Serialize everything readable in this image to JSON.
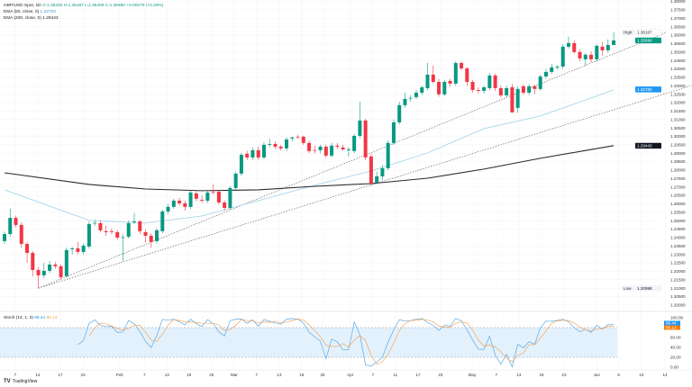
{
  "legend": {
    "symbol": "GBP/USD Spot, 1D",
    "ohlc": "O:1.35420 H:1.36167 L:1.35408 C:1.35690 +0.00270 (+0.20%)",
    "ema50_label": "EMA (50, close, 0)",
    "ema50_value": "1.32783",
    "ema200_label": "EMA (200, close, 0)",
    "ema200_value": "1.29443"
  },
  "stoch_legend": {
    "label": "Stoch (14, 1, 3)",
    "k_value": "88.44",
    "d_value": "85.13"
  },
  "branding": {
    "logo_text": "TradingView"
  },
  "colors": {
    "up": "#089981",
    "down": "#f23645",
    "ema50": "#a9d6ea",
    "ema200": "#2a2a2a",
    "stoch_k": "#5aaae6",
    "stoch_d": "#f5a55a",
    "stoch_band": "#e3f1fc",
    "close_badge": "#089981",
    "ema50_badge": "#2196f3",
    "ema200_badge": "#131722"
  },
  "chart_data": [
    {
      "type": "candlestick",
      "title": "GBP/USD Spot, 1D",
      "ylim": [
        1.195,
        1.3815
      ],
      "grid": true,
      "y_ticks": [
        "1.38000",
        "1.37500",
        "1.37000",
        "1.36500",
        "1.36000",
        "1.35500",
        "1.35000",
        "1.34500",
        "1.34000",
        "1.33500",
        "1.33000",
        "1.32500",
        "1.32000",
        "1.31500",
        "1.31000",
        "1.30500",
        "1.30000",
        "1.29500",
        "1.29000",
        "1.28500",
        "1.28000",
        "1.27500",
        "1.27000",
        "1.26500",
        "1.26000",
        "1.25500",
        "1.25000",
        "1.24500",
        "1.24000",
        "1.23500",
        "1.23000",
        "1.22500",
        "1.22000",
        "1.21500",
        "1.21000",
        "1.20500",
        "1.20000"
      ],
      "x_ticks": [
        {
          "label": "7",
          "index": 1.9
        },
        {
          "label": "13",
          "index": 5.9
        },
        {
          "label": "17",
          "index": 9.9
        },
        {
          "label": "23",
          "index": 13.9
        },
        {
          "label": "Feb",
          "index": 20.4
        },
        {
          "label": "7",
          "index": 24.8
        },
        {
          "label": "13",
          "index": 28.8
        },
        {
          "label": "19",
          "index": 32.7
        },
        {
          "label": "25",
          "index": 36.7
        },
        {
          "label": "Mar",
          "index": 40.7
        },
        {
          "label": "7",
          "index": 44.7
        },
        {
          "label": "13",
          "index": 48.7
        },
        {
          "label": "19",
          "index": 52.7
        },
        {
          "label": "25",
          "index": 56.4
        },
        {
          "label": "Apr",
          "index": 61.3
        },
        {
          "label": "7",
          "index": 65.3
        },
        {
          "label": "11",
          "index": 69.3
        },
        {
          "label": "17",
          "index": 73.3
        },
        {
          "label": "23",
          "index": 77.3
        },
        {
          "label": "May",
          "index": 82.9
        },
        {
          "label": "7",
          "index": 87.2
        },
        {
          "label": "13",
          "index": 91.2
        },
        {
          "label": "19",
          "index": 95.2
        },
        {
          "label": "23",
          "index": 99.2
        },
        {
          "label": "Jun",
          "index": 105
        },
        {
          "label": "6",
          "index": 108.9
        },
        {
          "label": "10",
          "index": 112.9
        },
        {
          "label": "14",
          "index": 117.1
        }
      ],
      "ohlc": [
        [
          1.2379,
          1.2436,
          1.2364,
          1.2421
        ],
        [
          1.2421,
          1.2571,
          1.2405,
          1.2517
        ],
        [
          1.2517,
          1.253,
          1.246,
          1.2475
        ],
        [
          1.2475,
          1.249,
          1.234,
          1.2362
        ],
        [
          1.2362,
          1.2375,
          1.225,
          1.2309
        ],
        [
          1.2309,
          1.232,
          1.217,
          1.2208
        ],
        [
          1.2208,
          1.2225,
          1.21,
          1.2176
        ],
        [
          1.2176,
          1.225,
          1.216,
          1.2203
        ],
        [
          1.2203,
          1.2262,
          1.219,
          1.224
        ],
        [
          1.224,
          1.2255,
          1.2215,
          1.223
        ],
        [
          1.223,
          1.224,
          1.215,
          1.2165
        ],
        [
          1.2171,
          1.234,
          1.216,
          1.2326
        ],
        [
          1.2331,
          1.2345,
          1.23,
          1.2336
        ],
        [
          1.2336,
          1.2375,
          1.23,
          1.2315
        ],
        [
          1.2315,
          1.2365,
          1.23,
          1.2352
        ],
        [
          1.2347,
          1.2495,
          1.2335,
          1.248
        ],
        [
          1.2485,
          1.2505,
          1.247,
          1.2487
        ],
        [
          1.2486,
          1.25,
          1.243,
          1.2443
        ],
        [
          1.2438,
          1.247,
          1.241,
          1.2432
        ],
        [
          1.2438,
          1.2455,
          1.242,
          1.2433
        ],
        [
          1.2432,
          1.2445,
          1.2385,
          1.24
        ],
        [
          1.24,
          1.242,
          1.2262,
          1.2402
        ],
        [
          1.2405,
          1.25,
          1.2395,
          1.2486
        ],
        [
          1.2491,
          1.2545,
          1.248,
          1.2496
        ],
        [
          1.2496,
          1.2505,
          1.242,
          1.2438
        ],
        [
          1.2432,
          1.245,
          1.237,
          1.2411
        ],
        [
          1.2411,
          1.2425,
          1.234,
          1.2374
        ],
        [
          1.2379,
          1.2455,
          1.2365,
          1.2443
        ],
        [
          1.2438,
          1.2565,
          1.2425,
          1.2555
        ],
        [
          1.2555,
          1.26,
          1.254,
          1.2582
        ],
        [
          1.2582,
          1.263,
          1.257,
          1.2619
        ],
        [
          1.2619,
          1.2635,
          1.259,
          1.2603
        ],
        [
          1.2603,
          1.262,
          1.256,
          1.2582
        ],
        [
          1.2582,
          1.268,
          1.257,
          1.2667
        ],
        [
          1.2662,
          1.2675,
          1.2615,
          1.263
        ],
        [
          1.2624,
          1.265,
          1.2605,
          1.2619
        ],
        [
          1.2619,
          1.268,
          1.2605,
          1.2667
        ],
        [
          1.2672,
          1.2715,
          1.2655,
          1.267
        ],
        [
          1.2672,
          1.2685,
          1.2595,
          1.2608
        ],
        [
          1.2608,
          1.262,
          1.256,
          1.2576
        ],
        [
          1.2576,
          1.2705,
          1.2565,
          1.2694
        ],
        [
          1.2694,
          1.279,
          1.268,
          1.2779
        ],
        [
          1.2779,
          1.29,
          1.2765,
          1.2891
        ],
        [
          1.2897,
          1.2915,
          1.286,
          1.2875
        ],
        [
          1.2875,
          1.2935,
          1.286,
          1.2918
        ],
        [
          1.2918,
          1.294,
          1.286,
          1.2875
        ],
        [
          1.2875,
          1.2965,
          1.2865,
          1.295
        ],
        [
          1.295,
          1.2985,
          1.2935,
          1.2955
        ],
        [
          1.2955,
          1.297,
          1.2925,
          1.2939
        ],
        [
          1.2939,
          1.295,
          1.2915,
          1.2929
        ],
        [
          1.2929,
          1.2995,
          1.2915,
          1.2982
        ],
        [
          1.2987,
          1.3,
          1.297,
          1.2993
        ],
        [
          1.2998,
          1.301,
          1.2985,
          1.2997
        ],
        [
          1.2998,
          1.3005,
          1.295,
          1.2961
        ],
        [
          1.2961,
          1.2975,
          1.29,
          1.2913
        ],
        [
          1.2918,
          1.2945,
          1.29,
          1.2916
        ],
        [
          1.2918,
          1.295,
          1.29,
          1.2939
        ],
        [
          1.2939,
          1.295,
          1.2875,
          1.2886
        ],
        [
          1.2886,
          1.296,
          1.2875,
          1.2945
        ],
        [
          1.2945,
          1.296,
          1.2925,
          1.2939
        ],
        [
          1.2934,
          1.295,
          1.2915,
          1.2923
        ],
        [
          1.2918,
          1.2935,
          1.288,
          1.2923
        ],
        [
          1.2913,
          1.3015,
          1.29,
          1.3003
        ],
        [
          1.3003,
          1.3206,
          1.299,
          1.3094
        ],
        [
          1.3094,
          1.3105,
          1.286,
          1.2875
        ],
        [
          1.2881,
          1.2895,
          1.271,
          1.2721
        ],
        [
          1.2726,
          1.279,
          1.2715,
          1.2763
        ],
        [
          1.2763,
          1.283,
          1.274,
          1.2811
        ],
        [
          1.2811,
          1.2975,
          1.28,
          1.2961
        ],
        [
          1.2961,
          1.31,
          1.295,
          1.3083
        ],
        [
          1.3083,
          1.3205,
          1.307,
          1.3185
        ],
        [
          1.3185,
          1.326,
          1.317,
          1.3222
        ],
        [
          1.3227,
          1.3245,
          1.3205,
          1.3228
        ],
        [
          1.3233,
          1.3275,
          1.322,
          1.3259
        ],
        [
          1.3259,
          1.33,
          1.3245,
          1.3291
        ],
        [
          1.3286,
          1.3435,
          1.3275,
          1.3366
        ],
        [
          1.3366,
          1.342,
          1.3315,
          1.3323
        ],
        [
          1.3323,
          1.334,
          1.3235,
          1.3249
        ],
        [
          1.3249,
          1.3335,
          1.324,
          1.3323
        ],
        [
          1.3329,
          1.334,
          1.3295,
          1.3313
        ],
        [
          1.3313,
          1.3445,
          1.33,
          1.3435
        ],
        [
          1.3435,
          1.3445,
          1.339,
          1.3403
        ],
        [
          1.3403,
          1.341,
          1.33,
          1.3323
        ],
        [
          1.3323,
          1.3335,
          1.326,
          1.3275
        ],
        [
          1.3275,
          1.329,
          1.3255,
          1.327
        ],
        [
          1.327,
          1.33,
          1.3255,
          1.3291
        ],
        [
          1.3286,
          1.3375,
          1.3275,
          1.3361
        ],
        [
          1.3361,
          1.337,
          1.327,
          1.3286
        ],
        [
          1.3286,
          1.33,
          1.323,
          1.3243
        ],
        [
          1.3243,
          1.33,
          1.323,
          1.3286
        ],
        [
          1.3291,
          1.331,
          1.314,
          1.3142
        ],
        [
          1.3169,
          1.3295,
          1.314,
          1.3281
        ],
        [
          1.3297,
          1.331,
          1.3245,
          1.3259
        ],
        [
          1.3259,
          1.331,
          1.3245,
          1.3297
        ],
        [
          1.3297,
          1.3305,
          1.325,
          1.3281
        ],
        [
          1.3281,
          1.3365,
          1.327,
          1.3355
        ],
        [
          1.3355,
          1.34,
          1.334,
          1.3382
        ],
        [
          1.3382,
          1.343,
          1.337,
          1.3409
        ],
        [
          1.3409,
          1.342,
          1.3395,
          1.3414
        ],
        [
          1.3414,
          1.3545,
          1.34,
          1.3532
        ],
        [
          1.3532,
          1.359,
          1.352,
          1.3553
        ],
        [
          1.3553,
          1.357,
          1.349,
          1.35
        ],
        [
          1.35,
          1.3515,
          1.3445,
          1.3462
        ],
        [
          1.3457,
          1.3495,
          1.342,
          1.3484
        ],
        [
          1.3484,
          1.3505,
          1.344,
          1.3457
        ],
        [
          1.3457,
          1.3545,
          1.3445,
          1.3537
        ],
        [
          1.3532,
          1.356,
          1.348,
          1.351
        ],
        [
          1.351,
          1.3575,
          1.3495,
          1.3542
        ],
        [
          1.3542,
          1.3617,
          1.3541,
          1.3569
        ]
      ],
      "ema50": {
        "index": [
          0,
          15,
          25,
          35,
          45,
          55,
          65,
          75,
          85,
          95,
          108
        ],
        "values": [
          1.2683,
          1.2502,
          1.2486,
          1.2528,
          1.2619,
          1.271,
          1.2795,
          1.2902,
          1.3046,
          1.3121,
          1.3275
        ]
      },
      "ema200": {
        "index": [
          0,
          15,
          25,
          35,
          45,
          55,
          65,
          75,
          85,
          95,
          108
        ],
        "values": [
          1.2784,
          1.2715,
          1.2688,
          1.2678,
          1.2683,
          1.2704,
          1.272,
          1.2752,
          1.2806,
          1.287,
          1.2945
        ]
      },
      "trendlines": [
        {
          "from": {
            "index": 6,
            "price": 1.21
          },
          "to": {
            "index": 117.4,
            "price": 1.3617
          }
        },
        {
          "from": {
            "index": 6,
            "price": 1.21
          },
          "to": {
            "index": 121.9,
            "price": 1.3302
          }
        }
      ],
      "price_labels": {
        "high": {
          "tag": "High",
          "value": "1.36167",
          "price": 1.36167
        },
        "close": {
          "value": "1.35690",
          "price": 1.3569
        },
        "ema50": {
          "value": "1.32783",
          "price": 1.32783
        },
        "ema200": {
          "value": "1.29443",
          "price": 1.29443
        },
        "low": {
          "tag": "Low",
          "value": "1.20998",
          "price": 1.20998
        }
      }
    },
    {
      "type": "line",
      "title": "Stoch (14, 1, 3)",
      "ylim": [
        0,
        100
      ],
      "y_ticks": [
        "100.00",
        "60.00",
        "40.00",
        "20.00",
        "0.00"
      ],
      "bands": [
        20,
        80
      ],
      "last_k": "88.44",
      "last_d": "85.13"
    }
  ]
}
